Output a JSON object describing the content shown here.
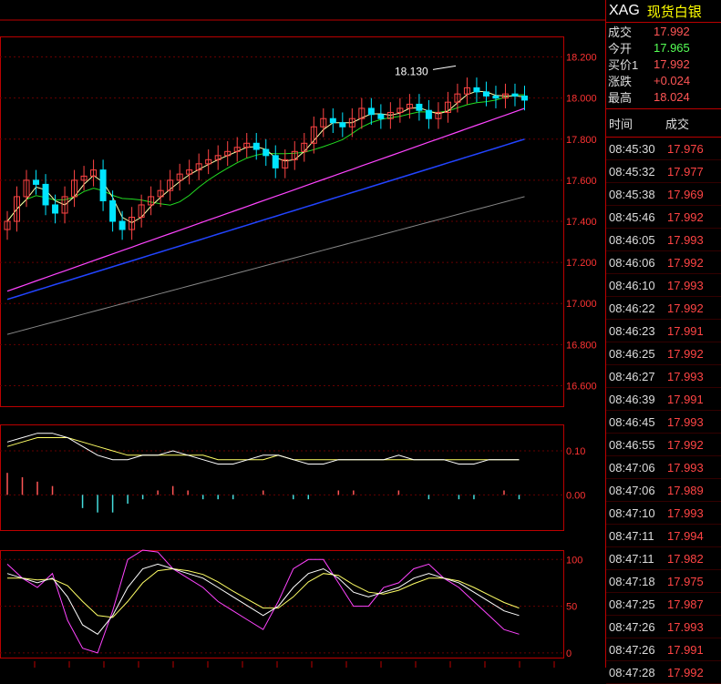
{
  "header": {
    "symbol": "XAG",
    "name": "现货白银"
  },
  "quote": [
    {
      "label": "成交",
      "value": "17.992",
      "color": "red"
    },
    {
      "label": "今开",
      "value": "17.965",
      "color": "green"
    },
    {
      "label": "买价1",
      "value": "17.992",
      "color": "red"
    },
    {
      "label": "涨跌",
      "value": "+0.024",
      "color": "red"
    },
    {
      "label": "最高",
      "value": "18.024",
      "color": "red"
    }
  ],
  "ticks_header": {
    "time": "时间",
    "price": "成交"
  },
  "ticks": [
    {
      "time": "08:45:30",
      "price": "17.976"
    },
    {
      "time": "08:45:32",
      "price": "17.977"
    },
    {
      "time": "08:45:38",
      "price": "17.969"
    },
    {
      "time": "08:45:46",
      "price": "17.992"
    },
    {
      "time": "08:46:05",
      "price": "17.993"
    },
    {
      "time": "08:46:06",
      "price": "17.992"
    },
    {
      "time": "08:46:10",
      "price": "17.993"
    },
    {
      "time": "08:46:22",
      "price": "17.992"
    },
    {
      "time": "08:46:23",
      "price": "17.991"
    },
    {
      "time": "08:46:25",
      "price": "17.992"
    },
    {
      "time": "08:46:27",
      "price": "17.993"
    },
    {
      "time": "08:46:39",
      "price": "17.991"
    },
    {
      "time": "08:46:45",
      "price": "17.993"
    },
    {
      "time": "08:46:55",
      "price": "17.992"
    },
    {
      "time": "08:47:06",
      "price": "17.993"
    },
    {
      "time": "08:47:06",
      "price": "17.989"
    },
    {
      "time": "08:47:10",
      "price": "17.993"
    },
    {
      "time": "08:47:11",
      "price": "17.994"
    },
    {
      "time": "08:47:11",
      "price": "17.982"
    },
    {
      "time": "08:47:18",
      "price": "17.975"
    },
    {
      "time": "08:47:25",
      "price": "17.987"
    },
    {
      "time": "08:47:26",
      "price": "17.993"
    },
    {
      "time": "08:47:26",
      "price": "17.991"
    },
    {
      "time": "08:47:28",
      "price": "17.992"
    }
  ],
  "chart_data": [
    {
      "type": "candlestick",
      "panel": "price",
      "ylim": [
        16.5,
        18.3
      ],
      "y_ticks": [
        "18.200",
        "18.000",
        "17.800",
        "17.600",
        "17.400",
        "17.200",
        "17.000",
        "16.800",
        "16.600"
      ],
      "y_tick_values": [
        18.2,
        18.0,
        17.8,
        17.6,
        17.4,
        17.2,
        17.0,
        16.8,
        16.6
      ],
      "annotation": {
        "text": "18.130",
        "value": 18.13
      },
      "close": [
        17.4,
        17.52,
        17.6,
        17.58,
        17.48,
        17.44,
        17.52,
        17.6,
        17.62,
        17.65,
        17.5,
        17.4,
        17.36,
        17.42,
        17.48,
        17.52,
        17.55,
        17.6,
        17.63,
        17.65,
        17.68,
        17.7,
        17.72,
        17.74,
        17.76,
        17.78,
        17.75,
        17.72,
        17.66,
        17.7,
        17.74,
        17.78,
        17.86,
        17.9,
        17.88,
        17.86,
        17.9,
        17.95,
        17.92,
        17.9,
        17.93,
        17.95,
        17.97,
        17.94,
        17.9,
        17.93,
        17.98,
        18.02,
        18.05,
        18.03,
        18.01,
        18.0,
        18.02,
        18.01,
        17.99
      ],
      "series": [
        {
          "name": "MA5",
          "color": "#ffffaa"
        },
        {
          "name": "MA10",
          "color": "#ff44ff"
        },
        {
          "name": "MA20",
          "color": "#22dd22"
        },
        {
          "name": "MA60",
          "color": "#2244ff"
        },
        {
          "name": "MA250",
          "color": "#888888"
        }
      ]
    },
    {
      "type": "macd",
      "panel": "macd",
      "ylim": [
        -0.08,
        0.16
      ],
      "y_ticks": [
        "0.10",
        "0.00"
      ],
      "y_tick_values": [
        0.1,
        0.0
      ],
      "dif": [
        0.12,
        0.13,
        0.14,
        0.14,
        0.13,
        0.11,
        0.09,
        0.08,
        0.08,
        0.09,
        0.09,
        0.1,
        0.09,
        0.08,
        0.07,
        0.07,
        0.08,
        0.09,
        0.09,
        0.08,
        0.07,
        0.07,
        0.08,
        0.08,
        0.08,
        0.08,
        0.09,
        0.08,
        0.08,
        0.08,
        0.07,
        0.07,
        0.08,
        0.08,
        0.08
      ],
      "dea": [
        0.11,
        0.12,
        0.13,
        0.13,
        0.13,
        0.12,
        0.11,
        0.1,
        0.09,
        0.09,
        0.09,
        0.09,
        0.09,
        0.09,
        0.08,
        0.08,
        0.08,
        0.08,
        0.09,
        0.08,
        0.08,
        0.08,
        0.08,
        0.08,
        0.08,
        0.08,
        0.08,
        0.08,
        0.08,
        0.08,
        0.08,
        0.08,
        0.08,
        0.08,
        0.08
      ],
      "hist": [
        0.05,
        0.04,
        0.03,
        0.02,
        0.0,
        -0.03,
        -0.04,
        -0.04,
        -0.02,
        -0.01,
        0.01,
        0.02,
        0.01,
        -0.01,
        -0.01,
        -0.01,
        0.0,
        0.01,
        0.0,
        -0.01,
        -0.01,
        0.0,
        0.01,
        0.01,
        0.0,
        0.0,
        0.01,
        0.0,
        -0.01,
        0.0,
        -0.01,
        -0.01,
        0.0,
        0.01,
        -0.01
      ]
    },
    {
      "type": "kdj",
      "panel": "kdj",
      "ylim": [
        -5,
        110
      ],
      "y_ticks": [
        "100",
        "50",
        "0"
      ],
      "y_tick_values": [
        100,
        50,
        0
      ],
      "k": [
        85,
        80,
        75,
        80,
        60,
        30,
        20,
        40,
        70,
        90,
        95,
        90,
        85,
        80,
        70,
        60,
        50,
        40,
        50,
        70,
        85,
        90,
        80,
        65,
        60,
        65,
        70,
        80,
        85,
        80,
        75,
        65,
        55,
        45,
        40
      ],
      "d": [
        80,
        80,
        78,
        79,
        72,
        55,
        40,
        38,
        55,
        75,
        88,
        90,
        88,
        84,
        76,
        66,
        57,
        48,
        48,
        60,
        76,
        85,
        83,
        73,
        65,
        63,
        67,
        74,
        80,
        80,
        77,
        70,
        62,
        54,
        48
      ],
      "j": [
        95,
        80,
        70,
        85,
        35,
        5,
        0,
        45,
        100,
        110,
        108,
        90,
        80,
        70,
        55,
        45,
        35,
        25,
        55,
        90,
        100,
        100,
        75,
        50,
        50,
        70,
        75,
        90,
        95,
        80,
        70,
        55,
        40,
        25,
        20
      ]
    }
  ]
}
